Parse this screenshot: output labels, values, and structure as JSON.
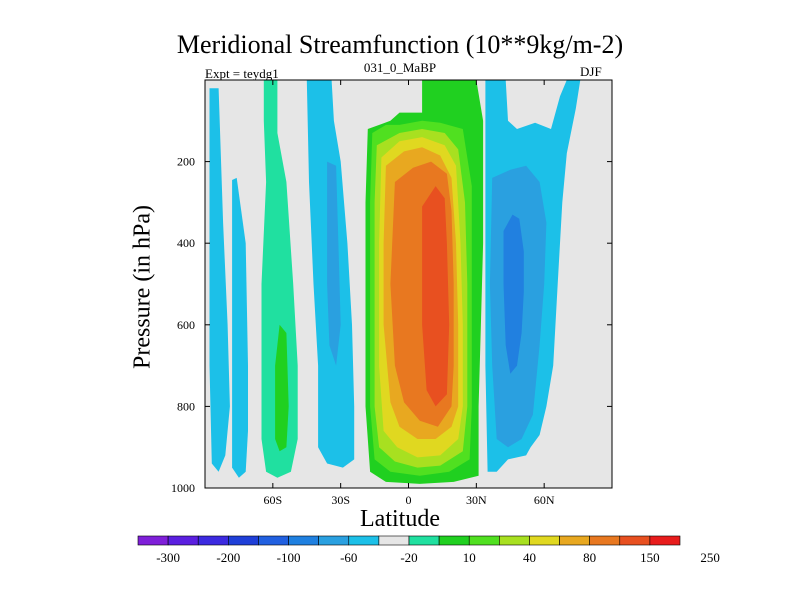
{
  "chart_data": {
    "type": "contour",
    "title": "Meridional Streamfunction (10**9kg/m-2)",
    "subtitle": "031_0_MaBP",
    "experiment": "Expt = teydg1",
    "season": "DJF",
    "xlabel": "Latitude",
    "ylabel": "Pressure (in hPa)",
    "xlim": [
      -90,
      90
    ],
    "ylim": [
      1000,
      0
    ],
    "x_ticks": [
      {
        "value": -60,
        "label": "60S"
      },
      {
        "value": -30,
        "label": "30S"
      },
      {
        "value": 0,
        "label": "0"
      },
      {
        "value": 30,
        "label": "30N"
      },
      {
        "value": 60,
        "label": "60N"
      }
    ],
    "y_ticks": [
      {
        "value": 200,
        "label": "200"
      },
      {
        "value": 400,
        "label": "400"
      },
      {
        "value": 600,
        "label": "600"
      },
      {
        "value": 800,
        "label": "800"
      },
      {
        "value": 1000,
        "label": "1000"
      }
    ],
    "colorbar": {
      "colors": [
        "#7f1fd9",
        "#5b1fe0",
        "#3c2ae0",
        "#1f3fd8",
        "#2160e0",
        "#1f80e0",
        "#2aa0e0",
        "#1cc0e8",
        "#e6e6e6",
        "#20e0a0",
        "#20d020",
        "#50e020",
        "#a8e020",
        "#e0d820",
        "#e8a820",
        "#e87820",
        "#e85020",
        "#e81c1c"
      ],
      "labels": [
        {
          "boundary": 1,
          "label": "-300"
        },
        {
          "boundary": 3,
          "label": "-200"
        },
        {
          "boundary": 5,
          "label": "-100"
        },
        {
          "boundary": 7,
          "label": "-60"
        },
        {
          "boundary": 9,
          "label": "-20"
        },
        {
          "boundary": 11,
          "label": "10"
        },
        {
          "boundary": 13,
          "label": "40"
        },
        {
          "boundary": 15,
          "label": "80"
        },
        {
          "boundary": 17,
          "label": "150"
        },
        {
          "boundary": 19,
          "label": "250"
        }
      ]
    },
    "regions": [
      {
        "name": "southern-polar-cell",
        "color": "#1cc0e8",
        "points": [
          [
            -88,
            20
          ],
          [
            -84,
            20
          ],
          [
            -82,
            350
          ],
          [
            -80,
            600
          ],
          [
            -79,
            800
          ],
          [
            -81,
            920
          ],
          [
            -84,
            960
          ],
          [
            -87,
            940
          ],
          [
            -88,
            700
          ]
        ]
      },
      {
        "name": "southern-inner-cell",
        "color": "#1cc0e8",
        "points": [
          [
            -78,
            245
          ],
          [
            -76,
            240
          ],
          [
            -72,
            400
          ],
          [
            -71,
            700
          ],
          [
            -71,
            860
          ],
          [
            -72,
            960
          ],
          [
            -75,
            975
          ],
          [
            -78,
            950
          ],
          [
            -78,
            600
          ]
        ]
      },
      {
        "name": "southern-ferrel-outer",
        "color": "#20e0a0",
        "points": [
          [
            -64,
            0
          ],
          [
            -58,
            0
          ],
          [
            -58,
            130
          ],
          [
            -54,
            250
          ],
          [
            -51,
            500
          ],
          [
            -49,
            700
          ],
          [
            -49,
            880
          ],
          [
            -52,
            960
          ],
          [
            -58,
            975
          ],
          [
            -63,
            960
          ],
          [
            -65,
            880
          ],
          [
            -65,
            500
          ],
          [
            -63,
            250
          ],
          [
            -64,
            100
          ]
        ]
      },
      {
        "name": "southern-ferrel-inner",
        "color": "#20d020",
        "points": [
          [
            -57,
            600
          ],
          [
            -54,
            620
          ],
          [
            -53,
            800
          ],
          [
            -54,
            900
          ],
          [
            -57,
            910
          ],
          [
            -59,
            880
          ],
          [
            -59,
            700
          ]
        ]
      },
      {
        "name": "southern-midlat-outer",
        "color": "#1cc0e8",
        "points": [
          [
            -45,
            0
          ],
          [
            -34,
            0
          ],
          [
            -33,
            100
          ],
          [
            -30,
            200
          ],
          [
            -27,
            400
          ],
          [
            -25,
            600
          ],
          [
            -24,
            800
          ],
          [
            -24,
            930
          ],
          [
            -29,
            950
          ],
          [
            -36,
            940
          ],
          [
            -40,
            900
          ],
          [
            -40,
            700
          ],
          [
            -42,
            500
          ],
          [
            -44,
            250
          ]
        ]
      },
      {
        "name": "southern-midlat-inner",
        "color": "#2aa0e0",
        "points": [
          [
            -36,
            200
          ],
          [
            -32,
            210
          ],
          [
            -31,
            400
          ],
          [
            -30,
            600
          ],
          [
            -32,
            700
          ],
          [
            -35,
            650
          ],
          [
            -36,
            500
          ]
        ]
      },
      {
        "name": "hadley-l1",
        "color": "#20d020",
        "points": [
          [
            -18,
            120
          ],
          [
            -8,
            100
          ],
          [
            -4,
            80
          ],
          [
            6,
            80
          ],
          [
            6,
            0
          ],
          [
            30,
            0
          ],
          [
            33,
            100
          ],
          [
            33,
            400
          ],
          [
            32,
            600
          ],
          [
            31,
            800
          ],
          [
            31,
            970
          ],
          [
            20,
            985
          ],
          [
            5,
            990
          ],
          [
            -10,
            985
          ],
          [
            -17,
            960
          ],
          [
            -19,
            800
          ],
          [
            -19,
            600
          ],
          [
            -19,
            300
          ]
        ]
      },
      {
        "name": "hadley-l2",
        "color": "#50e020",
        "points": [
          [
            -16,
            130
          ],
          [
            -10,
            110
          ],
          [
            -4,
            110
          ],
          [
            6,
            100
          ],
          [
            14,
            105
          ],
          [
            24,
            120
          ],
          [
            28,
            260
          ],
          [
            28,
            500
          ],
          [
            28,
            800
          ],
          [
            27,
            930
          ],
          [
            18,
            960
          ],
          [
            5,
            970
          ],
          [
            -8,
            960
          ],
          [
            -15,
            930
          ],
          [
            -17,
            800
          ],
          [
            -17,
            600
          ],
          [
            -17,
            300
          ]
        ]
      },
      {
        "name": "hadley-l3",
        "color": "#a8e020",
        "points": [
          [
            -14,
            160
          ],
          [
            -4,
            130
          ],
          [
            6,
            120
          ],
          [
            16,
            130
          ],
          [
            22,
            170
          ],
          [
            25,
            300
          ],
          [
            26,
            500
          ],
          [
            26,
            800
          ],
          [
            24,
            910
          ],
          [
            14,
            945
          ],
          [
            4,
            950
          ],
          [
            -6,
            935
          ],
          [
            -13,
            900
          ],
          [
            -15,
            800
          ],
          [
            -15,
            600
          ],
          [
            -15,
            300
          ]
        ]
      },
      {
        "name": "hadley-l4",
        "color": "#e0d820",
        "points": [
          [
            -12,
            190
          ],
          [
            -4,
            150
          ],
          [
            6,
            140
          ],
          [
            16,
            160
          ],
          [
            21,
            210
          ],
          [
            23,
            400
          ],
          [
            24,
            600
          ],
          [
            24,
            800
          ],
          [
            22,
            880
          ],
          [
            14,
            920
          ],
          [
            4,
            925
          ],
          [
            -5,
            900
          ],
          [
            -11,
            860
          ],
          [
            -13,
            700
          ],
          [
            -13,
            400
          ]
        ]
      },
      {
        "name": "hadley-l5",
        "color": "#e8a820",
        "points": [
          [
            -10,
            210
          ],
          [
            -2,
            175
          ],
          [
            6,
            165
          ],
          [
            14,
            185
          ],
          [
            19,
            240
          ],
          [
            21,
            400
          ],
          [
            22,
            600
          ],
          [
            22,
            800
          ],
          [
            19,
            850
          ],
          [
            12,
            880
          ],
          [
            4,
            880
          ],
          [
            -4,
            850
          ],
          [
            -8,
            790
          ],
          [
            -11,
            600
          ],
          [
            -11,
            400
          ]
        ]
      },
      {
        "name": "hadley-l6",
        "color": "#e87820",
        "points": [
          [
            -6,
            250
          ],
          [
            2,
            215
          ],
          [
            10,
            200
          ],
          [
            17,
            230
          ],
          [
            19,
            320
          ],
          [
            20,
            500
          ],
          [
            20,
            700
          ],
          [
            19,
            800
          ],
          [
            13,
            850
          ],
          [
            5,
            835
          ],
          [
            -2,
            790
          ],
          [
            -6,
            700
          ],
          [
            -8,
            500
          ]
        ]
      },
      {
        "name": "hadley-l7",
        "color": "#e85020",
        "points": [
          [
            6,
            310
          ],
          [
            12,
            260
          ],
          [
            16,
            290
          ],
          [
            17,
            400
          ],
          [
            18,
            600
          ],
          [
            17,
            770
          ],
          [
            12,
            800
          ],
          [
            8,
            760
          ],
          [
            6,
            600
          ],
          [
            6,
            450
          ]
        ]
      },
      {
        "name": "northern-outer",
        "color": "#1cc0e8",
        "points": [
          [
            34,
            0
          ],
          [
            43,
            0
          ],
          [
            44,
            100
          ],
          [
            48,
            120
          ],
          [
            56,
            105
          ],
          [
            63,
            120
          ],
          [
            67,
            40
          ],
          [
            70,
            0
          ],
          [
            76,
            0
          ],
          [
            74,
            70
          ],
          [
            70,
            180
          ],
          [
            68,
            300
          ],
          [
            66,
            500
          ],
          [
            64,
            700
          ],
          [
            61,
            800
          ],
          [
            58,
            870
          ],
          [
            54,
            900
          ],
          [
            52,
            920
          ],
          [
            44,
            930
          ],
          [
            39,
            960
          ],
          [
            35,
            960
          ],
          [
            34,
            700
          ],
          [
            34,
            400
          ],
          [
            34,
            200
          ]
        ]
      },
      {
        "name": "northern-inner",
        "color": "#2aa0e0",
        "points": [
          [
            37,
            240
          ],
          [
            45,
            220
          ],
          [
            52,
            210
          ],
          [
            58,
            250
          ],
          [
            61,
            350
          ],
          [
            60,
            500
          ],
          [
            58,
            650
          ],
          [
            55,
            820
          ],
          [
            50,
            880
          ],
          [
            44,
            900
          ],
          [
            39,
            880
          ],
          [
            37,
            700
          ],
          [
            36,
            500
          ]
        ]
      },
      {
        "name": "northern-core",
        "color": "#2180e0",
        "points": [
          [
            42,
            370
          ],
          [
            46,
            330
          ],
          [
            49,
            340
          ],
          [
            51,
            420
          ],
          [
            51,
            520
          ],
          [
            50,
            620
          ],
          [
            48,
            700
          ],
          [
            45,
            720
          ],
          [
            43,
            650
          ],
          [
            42,
            500
          ]
        ]
      }
    ]
  }
}
